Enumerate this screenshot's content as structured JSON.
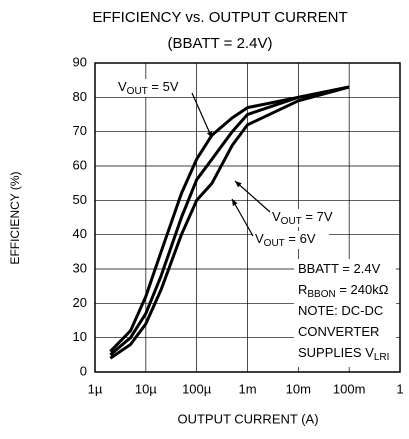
{
  "chart_data": {
    "type": "line",
    "title": "EFFICIENCY vs. OUTPUT CURRENT",
    "subtitle": "(BBATT = 2.4V)",
    "x_label": "OUTPUT CURRENT (A)",
    "y_label": "EFFICIENCY (%)",
    "x": [
      2e-06,
      5e-06,
      1e-05,
      2e-05,
      5e-05,
      0.0001,
      0.0002,
      0.0005,
      0.001,
      0.01,
      0.1
    ],
    "series": [
      {
        "name": "VOUT = 5V",
        "color": "#000000",
        "values": [
          6,
          12,
          22,
          35,
          52,
          62,
          69,
          74,
          77,
          80,
          83
        ]
      },
      {
        "name": "VOUT = 6V",
        "color": "#000000",
        "values": [
          4,
          8,
          14,
          24,
          40,
          50,
          55,
          66,
          72,
          79,
          83
        ]
      },
      {
        "name": "VOUT = 7V",
        "color": "#000000",
        "values": [
          5,
          10,
          17,
          28,
          45,
          56,
          62,
          70,
          75,
          80,
          83
        ]
      }
    ],
    "xlim": [
      1e-06,
      1
    ],
    "x_log": true,
    "xticks": [
      {
        "value": 1e-06,
        "label": "1µ"
      },
      {
        "value": 1e-05,
        "label": "10µ"
      },
      {
        "value": 0.0001,
        "label": "100µ"
      },
      {
        "value": 0.001,
        "label": "1m"
      },
      {
        "value": 0.01,
        "label": "10m"
      },
      {
        "value": 0.1,
        "label": "100m"
      },
      1
    ],
    "ylim": [
      0,
      90
    ],
    "yticks": [
      0,
      10,
      20,
      30,
      40,
      50,
      60,
      70,
      80,
      90
    ],
    "grid": true,
    "annotations": [
      {
        "main": "V",
        "sub": "OUT",
        "rest": " = 5V"
      },
      {
        "main": "V",
        "sub": "OUT",
        "rest": " = 7V"
      },
      {
        "main": "V",
        "sub": "OUT",
        "rest": " = 6V"
      }
    ],
    "note": [
      {
        "main": "BBATT = 2.4V"
      },
      {
        "main": "R",
        "sub": "BBON",
        "rest": " = 240kΩ"
      },
      {
        "main": "NOTE: DC-DC"
      },
      {
        "main": "CONVERTER"
      },
      {
        "main": "SUPPLIES V",
        "sub": "LRI"
      }
    ]
  }
}
